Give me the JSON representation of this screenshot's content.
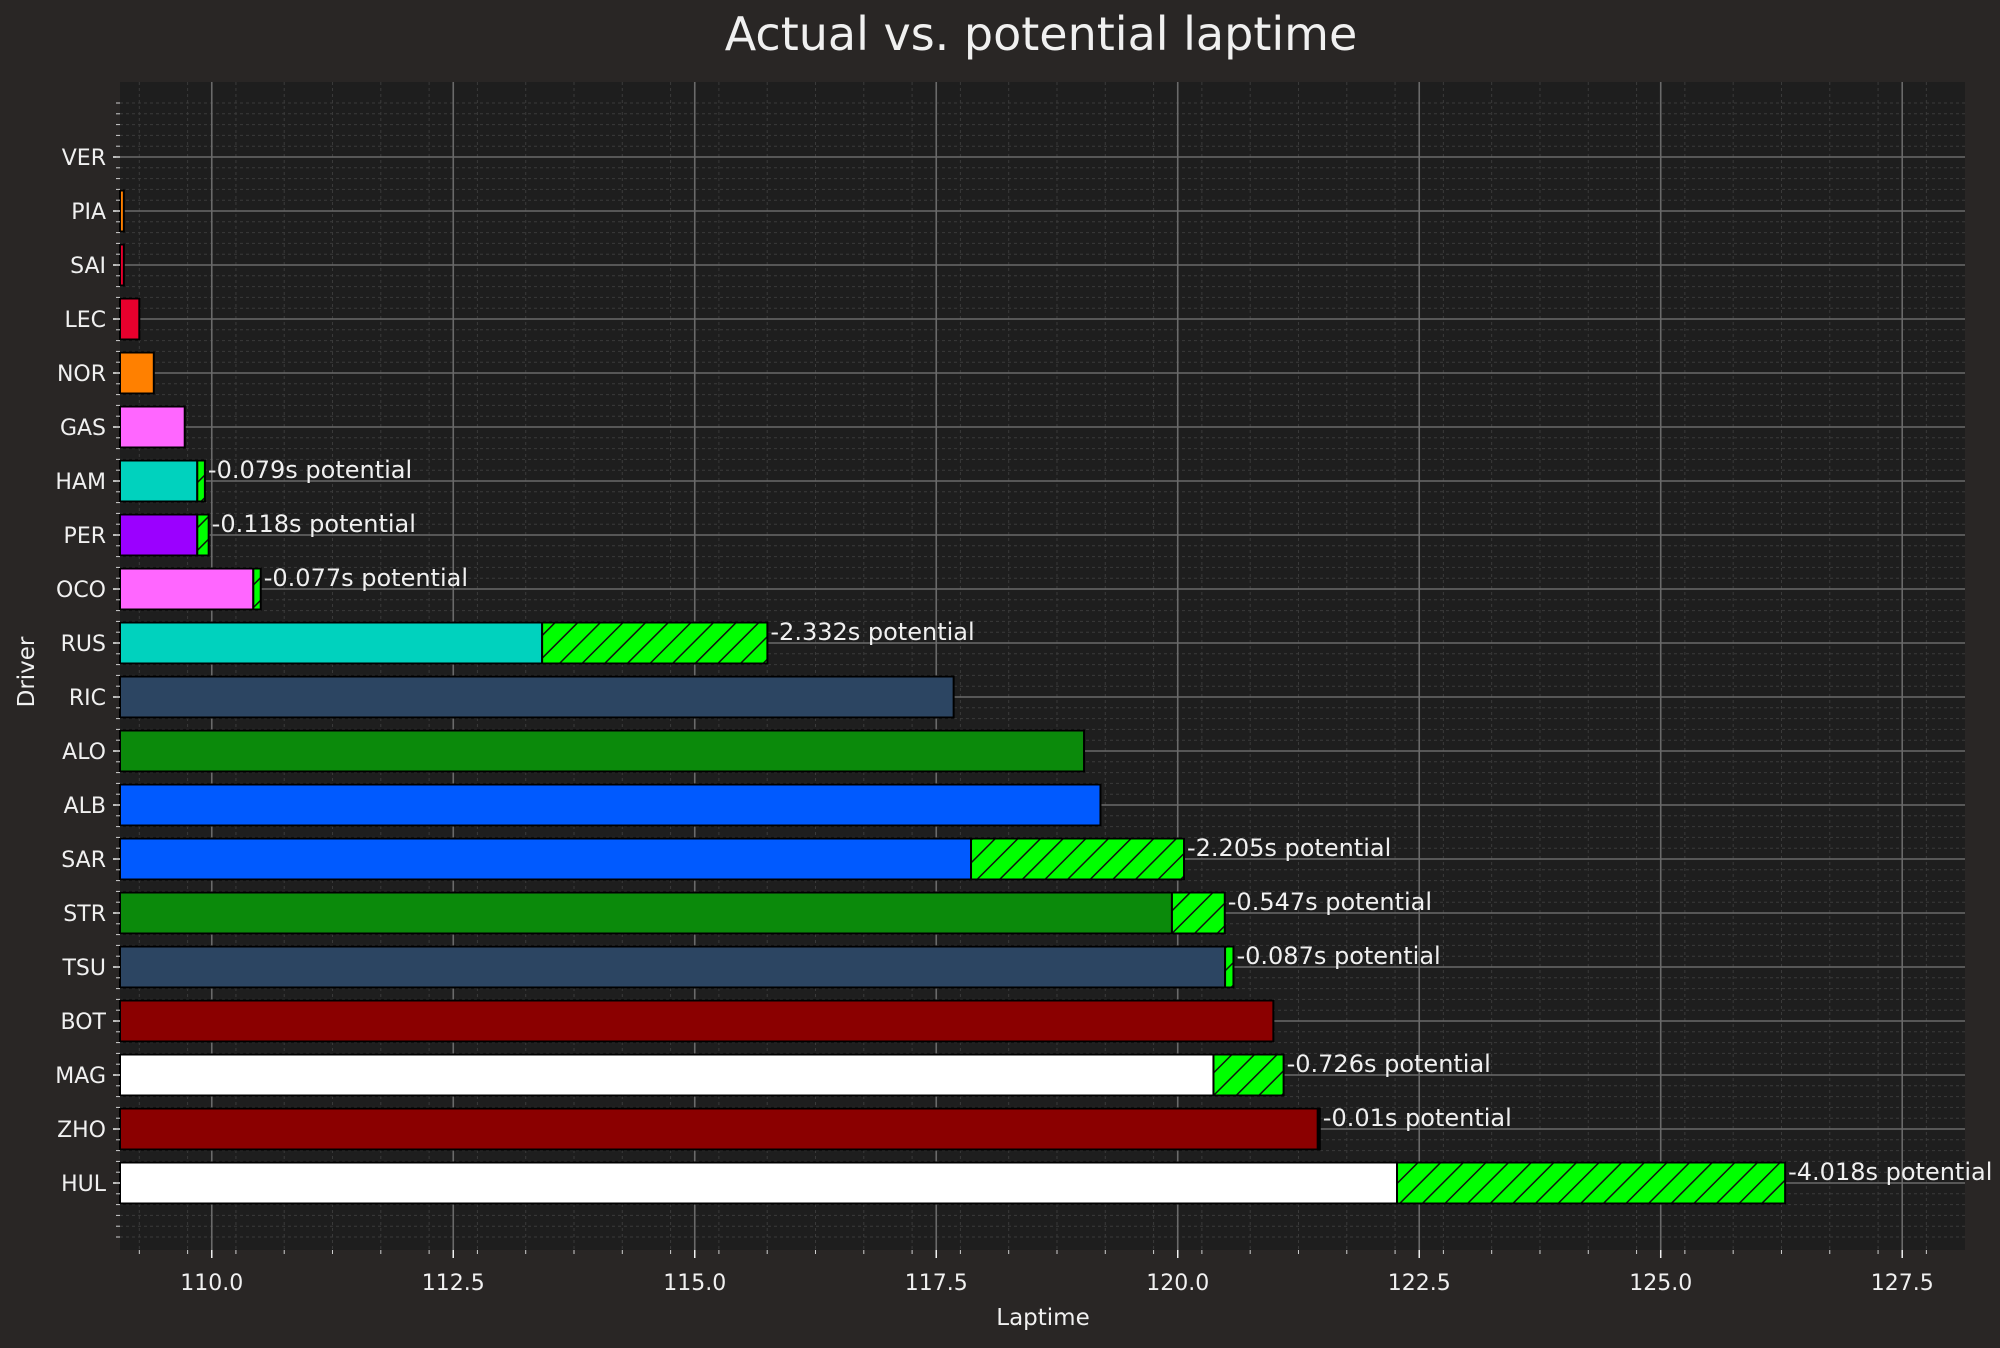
{
  "chart_data": {
    "type": "bar",
    "orientation": "horizontal",
    "title": "Actual vs. potential laptime",
    "xlabel": "Laptime",
    "ylabel": "Driver",
    "xlim": [
      109.05,
      128.15
    ],
    "xticks": [
      "110.0",
      "112.5",
      "115.0",
      "117.5",
      "120.0",
      "122.5",
      "125.0",
      "127.5"
    ],
    "grid": true,
    "legend": "none",
    "background": "#292625",
    "plot_background": "#1e1e1e",
    "potential_color": "#00ff00",
    "categories": [
      "VER",
      "PIA",
      "SAI",
      "LEC",
      "NOR",
      "GAS",
      "HAM",
      "PER",
      "OCO",
      "RUS",
      "RIC",
      "ALO",
      "ALB",
      "SAR",
      "STR",
      "TSU",
      "BOT",
      "MAG",
      "ZHO",
      "HUL"
    ],
    "series": [
      {
        "values": [
          109.05,
          109.09,
          109.09,
          109.25,
          109.4,
          109.72,
          109.85,
          109.85,
          110.43,
          113.42,
          117.68,
          119.03,
          119.2,
          117.86,
          119.94,
          120.49,
          120.99,
          120.37,
          121.45,
          122.27
        ],
        "colors": [
          "#3671c6",
          "#ff8000",
          "#e8002d",
          "#e8002d",
          "#ff8000",
          "#ff66ff",
          "#00d2be",
          "#9b00ff",
          "#ff66ff",
          "#00d2be",
          "#2c4562",
          "#0b8a0b",
          "#005aff",
          "#005aff",
          "#0b8a0b",
          "#2c4562",
          "#8b0000",
          "#ffffff",
          "#8b0000",
          "#ffffff"
        ]
      },
      {
        "values": [
          0,
          0,
          0,
          0,
          0,
          0,
          0.079,
          0.118,
          0.077,
          2.332,
          0,
          0,
          0,
          2.205,
          0.547,
          0.087,
          0,
          0.726,
          0.01,
          4.018
        ]
      }
    ],
    "annotations": [
      "",
      "",
      "",
      "",
      "",
      "",
      "-0.079s potential",
      "-0.118s potential",
      "-0.077s potential",
      "-2.332s potential",
      "",
      "",
      "",
      "-2.205s potential",
      "-0.547s potential",
      "-0.087s potential",
      "",
      "-0.726s potential",
      "-0.01s potential",
      "-4.018s potential"
    ]
  }
}
